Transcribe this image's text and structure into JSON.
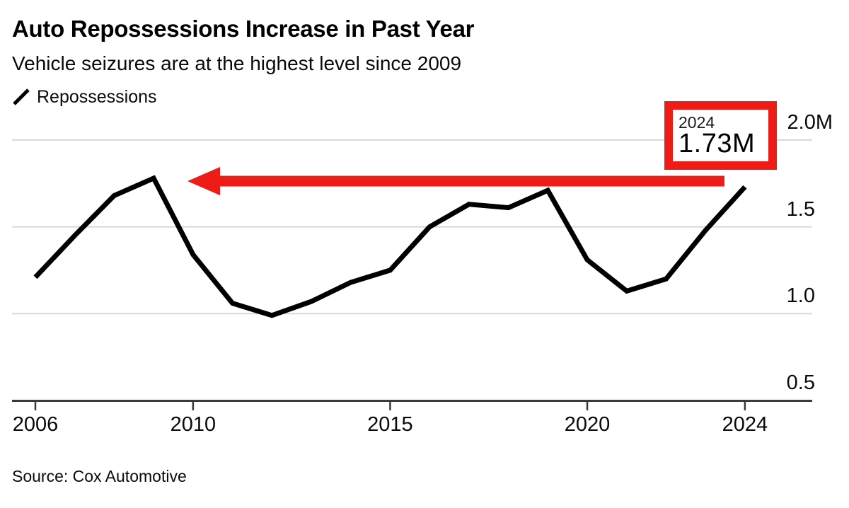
{
  "header": {
    "title": "Auto Repossessions Increase in Past Year",
    "subtitle": "Vehicle seizures are at the highest level since 2009"
  },
  "legend": {
    "label": "Repossessions"
  },
  "callout": {
    "year": "2024",
    "value": "1.73M"
  },
  "source": {
    "text": "Source: Cox Automotive"
  },
  "colors": {
    "line": "#000000",
    "annotation_red": "#ed1c16",
    "gridline": "#d8d8d8",
    "axis": "#3a3a3a"
  },
  "chart_data": {
    "type": "line",
    "title": "Auto Repossessions Increase in Past Year",
    "subtitle": "Vehicle seizures are at the highest level since 2009",
    "unit": "millions of vehicles",
    "grid": "horizontal",
    "legend_position": "top-left",
    "xlim": [
      2006,
      2024
    ],
    "ylim": [
      0.5,
      2.0
    ],
    "x_ticks": [
      2006,
      2010,
      2015,
      2020,
      2024
    ],
    "y_ticks": [
      {
        "label": "2.0M",
        "value": 2.0
      },
      {
        "label": "1.5",
        "value": 1.5
      },
      {
        "label": "1.0",
        "value": 1.0
      },
      {
        "label": "0.5",
        "value": 0.5
      }
    ],
    "series": [
      {
        "name": "Repossessions",
        "x": [
          2006,
          2007,
          2008,
          2009,
          2010,
          2011,
          2012,
          2013,
          2014,
          2015,
          2016,
          2017,
          2018,
          2019,
          2020,
          2021,
          2022,
          2023,
          2024
        ],
        "values": [
          1.21,
          1.45,
          1.68,
          1.78,
          1.34,
          1.06,
          0.99,
          1.07,
          1.18,
          1.25,
          1.5,
          1.63,
          1.61,
          1.71,
          1.31,
          1.13,
          1.2,
          1.48,
          1.73
        ]
      }
    ],
    "annotation": {
      "year": 2024,
      "value_label": "1.73M",
      "arrow_direction": "left",
      "arrow_points_from_year": 2024,
      "arrow_points_to_year": 2009
    },
    "source": "Source: Cox Automotive"
  }
}
